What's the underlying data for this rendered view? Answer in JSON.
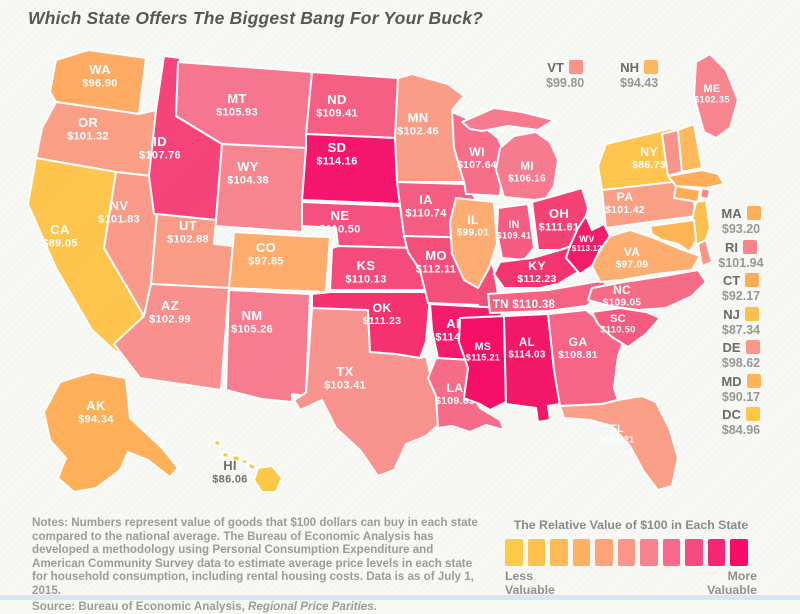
{
  "title": "Which State Offers The Biggest Bang For Your Buck?",
  "map": {
    "states": [
      {
        "abbr": "WA",
        "value": "$96.90",
        "color": "#FFAB63"
      },
      {
        "abbr": "OR",
        "value": "$101.32",
        "color": "#FB9F85"
      },
      {
        "abbr": "CA",
        "value": "$89.05",
        "color": "#FFC54C"
      },
      {
        "abbr": "NV",
        "value": "$101.83",
        "color": "#FB9A88"
      },
      {
        "abbr": "ID",
        "value": "$107.76",
        "color": "#F64379"
      },
      {
        "abbr": "MT",
        "value": "$105.93",
        "color": "#F8758F"
      },
      {
        "abbr": "WY",
        "value": "$104.38",
        "color": "#F9868F"
      },
      {
        "abbr": "UT",
        "value": "$102.88",
        "color": "#FB9C86"
      },
      {
        "abbr": "CO",
        "value": "$97.85",
        "color": "#FFAD6C"
      },
      {
        "abbr": "AZ",
        "value": "$102.99",
        "color": "#F9908E"
      },
      {
        "abbr": "NM",
        "value": "$105.26",
        "color": "#F87C90"
      },
      {
        "abbr": "TX",
        "value": "$103.41",
        "color": "#F9938D"
      },
      {
        "abbr": "ND",
        "value": "$109.41",
        "color": "#F75E83"
      },
      {
        "abbr": "SD",
        "value": "$114.16",
        "color": "#F5156C"
      },
      {
        "abbr": "NE",
        "value": "$110.50",
        "color": "#F64F80"
      },
      {
        "abbr": "KS",
        "value": "$110.13",
        "color": "#F64A7D"
      },
      {
        "abbr": "OK",
        "value": "$111.23",
        "color": "#F53170"
      },
      {
        "abbr": "MN",
        "value": "$102.46",
        "color": "#FB9D86"
      },
      {
        "abbr": "IA",
        "value": "$110.74",
        "color": "#F75C82"
      },
      {
        "abbr": "MO",
        "value": "$112.11",
        "color": "#F64E7B"
      },
      {
        "abbr": "AR",
        "value": "$114.29",
        "color": "#F41A6C"
      },
      {
        "abbr": "LA",
        "value": "$109.65",
        "color": "#F76C88"
      },
      {
        "abbr": "WI",
        "value": "$107.64",
        "color": "#F76E89"
      },
      {
        "abbr": "IL",
        "value": "$99.01",
        "color": "#FFAD72"
      },
      {
        "abbr": "MI",
        "value": "$106.16",
        "color": "#F87A8E"
      },
      {
        "abbr": "IN",
        "value": "$109.41",
        "color": "#F65C81"
      },
      {
        "abbr": "OH",
        "value": "$111.61",
        "color": "#F54174"
      },
      {
        "abbr": "KY",
        "value": "$112.23",
        "color": "#F53370"
      },
      {
        "abbr": "TN",
        "value": "$110.38",
        "color": "#F76283"
      },
      {
        "abbr": "MS",
        "value": "$115.21",
        "color": "#F50D66"
      },
      {
        "abbr": "AL",
        "value": "$114.03",
        "color": "#F41767"
      },
      {
        "abbr": "GA",
        "value": "$108.81",
        "color": "#F76486"
      },
      {
        "abbr": "FL",
        "value": "$101.21",
        "color": "#FB9F88"
      },
      {
        "abbr": "SC",
        "value": "$110.50",
        "color": "#F65A80"
      },
      {
        "abbr": "NC",
        "value": "$109.05",
        "color": "#F66C86"
      },
      {
        "abbr": "VA",
        "value": "$97.09",
        "color": "#FFAE70"
      },
      {
        "abbr": "WV",
        "value": "$113.12",
        "color": "#F41C6A"
      },
      {
        "abbr": "PA",
        "value": "$101.42",
        "color": "#FB9F85"
      },
      {
        "abbr": "NY",
        "value": "$86.73",
        "color": "#FFC54D"
      },
      {
        "abbr": "ME",
        "value": "$102.35",
        "color": "#F9858F"
      },
      {
        "abbr": "VT",
        "value": "$99.80",
        "color": "#FB938B"
      },
      {
        "abbr": "NH",
        "value": "$94.43",
        "color": "#FFB95A"
      },
      {
        "abbr": "MA",
        "value": "$93.20",
        "color": "#FFAD57"
      },
      {
        "abbr": "RI",
        "value": "$101.94",
        "color": "#F9848C"
      },
      {
        "abbr": "CT",
        "value": "$92.17",
        "color": "#FFAD55"
      },
      {
        "abbr": "NJ",
        "value": "$87.34",
        "color": "#FFC14E"
      },
      {
        "abbr": "DE",
        "value": "$98.62",
        "color": "#FB968A"
      },
      {
        "abbr": "MD",
        "value": "$90.17",
        "color": "#FFB456"
      },
      {
        "abbr": "DC",
        "value": "$84.96",
        "color": "#FFC746"
      },
      {
        "abbr": "AK",
        "value": "$94.34",
        "color": "#FFB058"
      },
      {
        "abbr": "HI",
        "value": "$86.06",
        "color": "#FFC746"
      }
    ]
  },
  "callouts": {
    "top": [
      "VT",
      "NH"
    ],
    "right": [
      "MA",
      "RI",
      "CT",
      "NJ",
      "DE",
      "MD",
      "DC"
    ]
  },
  "legend": {
    "title": "The Relative Value of $100 in Each State",
    "less_label": "Less Valuable",
    "more_label": "More Valuable",
    "ramp": [
      "#FFCB45",
      "#FFC34C",
      "#FFBB53",
      "#FFB061",
      "#FFA476",
      "#FC9787",
      "#FA8290",
      "#F8698C",
      "#F64B80",
      "#F52574",
      "#F70B67"
    ]
  },
  "notes": {
    "body": "Notes: Numbers represent value of goods that $100 dollars can buy in each state compared to the national average. The Bureau of Economic Analysis has developed a methodology using Personal Consumption Expenditure and American Community Survey data to estimate average price levels in each state for household consumption, including rental housing costs. Data is as of July 1, 2015.",
    "source_prefix": "Source: Bureau of Economic Analysis, ",
    "source_italic": "Regional Price Parities."
  }
}
